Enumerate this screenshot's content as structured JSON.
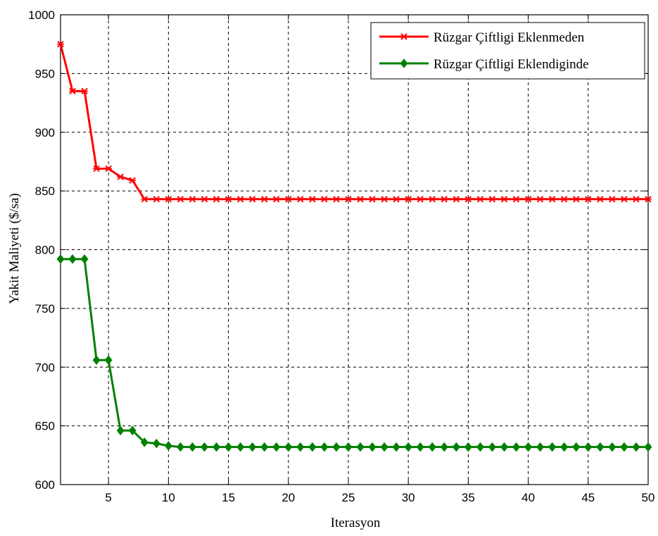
{
  "chart_data": {
    "type": "line",
    "xlabel": "Iterasyon",
    "ylabel": "Yakit Maliyeti ($/sa)",
    "xlim": [
      1,
      50
    ],
    "ylim": [
      600,
      1000
    ],
    "xticks": [
      5,
      10,
      15,
      20,
      25,
      30,
      35,
      40,
      45,
      50
    ],
    "yticks": [
      600,
      650,
      700,
      750,
      800,
      850,
      900,
      950,
      1000
    ],
    "grid": true,
    "legend_position": "top-right",
    "x": [
      1,
      2,
      3,
      4,
      5,
      6,
      7,
      8,
      9,
      10,
      11,
      12,
      13,
      14,
      15,
      16,
      17,
      18,
      19,
      20,
      21,
      22,
      23,
      24,
      25,
      26,
      27,
      28,
      29,
      30,
      31,
      32,
      33,
      34,
      35,
      36,
      37,
      38,
      39,
      40,
      41,
      42,
      43,
      44,
      45,
      46,
      47,
      48,
      49,
      50
    ],
    "series": [
      {
        "name": "Rüzgar Çiftligi Eklenmeden",
        "color": "#ff0000",
        "marker": "x",
        "values": [
          975,
          935,
          935,
          869,
          869,
          862,
          859,
          843,
          843,
          843,
          843,
          843,
          843,
          843,
          843,
          843,
          843,
          843,
          843,
          843,
          843,
          843,
          843,
          843,
          843,
          843,
          843,
          843,
          843,
          843,
          843,
          843,
          843,
          843,
          843,
          843,
          843,
          843,
          843,
          843,
          843,
          843,
          843,
          843,
          843,
          843,
          843,
          843,
          843,
          843
        ]
      },
      {
        "name": "Rüzgar Çiftligi Eklendiginde",
        "color": "#008000",
        "marker": "diamond",
        "values": [
          792,
          792,
          792,
          706,
          706,
          646,
          646,
          636,
          635,
          633,
          632,
          632,
          632,
          632,
          632,
          632,
          632,
          632,
          632,
          632,
          632,
          632,
          632,
          632,
          632,
          632,
          632,
          632,
          632,
          632,
          632,
          632,
          632,
          632,
          632,
          632,
          632,
          632,
          632,
          632,
          632,
          632,
          632,
          632,
          632,
          632,
          632,
          632,
          632,
          632
        ]
      }
    ]
  }
}
